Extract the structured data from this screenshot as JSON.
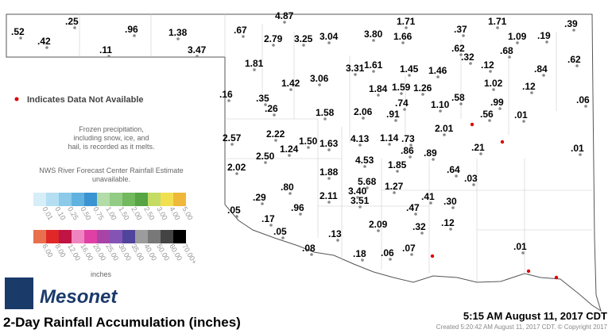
{
  "stations": [
    ".52",
    ".42",
    ".25",
    ".96",
    ".11",
    "1.38",
    "3.47",
    ".67",
    "4.87",
    "2.79",
    "3.25",
    "3.04",
    "3.80",
    "1.66",
    "1.71",
    ".37",
    "1.71",
    ".39",
    "1.09",
    ".19",
    ".62",
    ".32",
    ".68",
    ".62",
    ".12",
    ".84",
    "1.81",
    "3.31",
    "1.61",
    "1.45",
    "1.46",
    "3.06",
    "1.42",
    "1.02",
    ".12",
    ".16",
    ".35",
    "1.84",
    "1.59",
    "1.26",
    ".58",
    ".74",
    "1.10",
    ".99",
    ".06",
    ".26",
    "1.58",
    "2.06",
    ".91",
    ".56",
    ".01",
    "2.57",
    "2.22",
    "4.13",
    "1.14",
    ".73",
    "2.01",
    "1.50",
    "1.63",
    "1.24",
    ".86",
    ".89",
    ".21",
    ".01",
    "2.50",
    "4.53",
    "1.85",
    "2.02",
    ".64",
    ".03",
    "1.88",
    "5.68",
    ".80",
    "3.40",
    "1.27",
    "2.11",
    "3.51",
    ".41",
    ".30",
    ".29",
    ".96",
    ".47",
    ".05",
    ".17",
    ".12",
    "2.09",
    ".32",
    ".05",
    ".13",
    ".08",
    ".01",
    ".18",
    ".06",
    ".07"
  ],
  "legend": {
    "na": "Indicates Data Not Available",
    "frozen": [
      "Frozen precipitation,",
      "including snow, ice, and",
      "hail, is recorded as it melts."
    ],
    "nws": [
      "NWS River Forecast Center Rainfall Estimate",
      "unavailable."
    ],
    "scale1": [
      {
        "label": "0.01",
        "color": "#d6eef8"
      },
      {
        "label": "0.10",
        "color": "#b4def2"
      },
      {
        "label": "0.25",
        "color": "#8ccaea"
      },
      {
        "label": "0.50",
        "color": "#62b2e0"
      },
      {
        "label": "0.75",
        "color": "#3a94d2"
      },
      {
        "label": "1.00",
        "color": "#b4dca8"
      },
      {
        "label": "1.50",
        "color": "#92cc84"
      },
      {
        "label": "2.00",
        "color": "#72b85c"
      },
      {
        "label": "2.50",
        "color": "#56a444"
      },
      {
        "label": "3.00",
        "color": "#c4dc64"
      },
      {
        "label": "4.00",
        "color": "#f0e050"
      },
      {
        "label": "5.00",
        "color": "#f0b838"
      }
    ],
    "scale2": [
      {
        "label": "6.00",
        "color": "#e8704c"
      },
      {
        "label": "8.00",
        "color": "#e02828"
      },
      {
        "label": "12.00",
        "color": "#c01444"
      },
      {
        "label": "16.00",
        "color": "#f084c0"
      },
      {
        "label": "20.00",
        "color": "#e040a4"
      },
      {
        "label": "25.00",
        "color": "#a844a8"
      },
      {
        "label": "30.00",
        "color": "#8454b4"
      },
      {
        "label": "35.00",
        "color": "#50449c"
      },
      {
        "label": "40.00",
        "color": "#9c9c9c"
      },
      {
        "label": "50.00",
        "color": "#787878"
      },
      {
        "label": "60.00",
        "color": "#444444"
      },
      {
        "label": "70.00+",
        "color": "#000000"
      }
    ],
    "units": "inches"
  },
  "brand": "Mesonet",
  "title": "2-Day Rainfall Accumulation (inches)",
  "time": "5:15 AM August 11, 2017 CDT",
  "created": "Created 5:20:42 AM August 11, 2017 CDT. © Copyright 2017"
}
